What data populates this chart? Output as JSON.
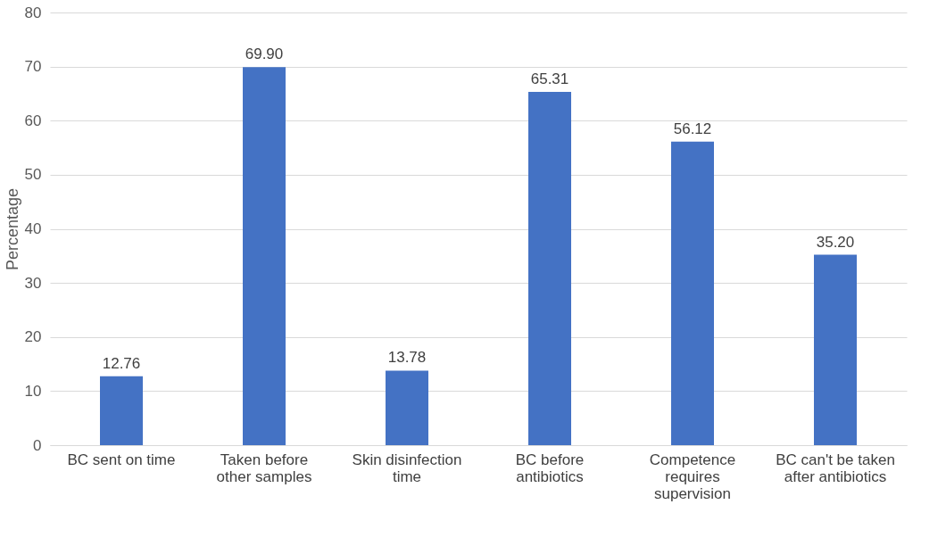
{
  "chart_data": {
    "type": "bar",
    "ylabel": "Percentage",
    "categories": [
      "BC sent on time",
      "Taken before other samples",
      "Skin disinfection time",
      "BC before antibiotics",
      "Competence requires supervision",
      "BC can't be taken after antibiotics"
    ],
    "values": [
      12.76,
      69.9,
      13.78,
      65.31,
      56.12,
      35.2
    ],
    "value_labels": [
      "12.76",
      "69.90",
      "13.78",
      "65.31",
      "56.12",
      "35.20"
    ],
    "color": "#4472c4",
    "ylim": [
      0,
      80
    ],
    "yticks": [
      0,
      10,
      20,
      30,
      40,
      50,
      60,
      70,
      80
    ],
    "grid": "y"
  }
}
